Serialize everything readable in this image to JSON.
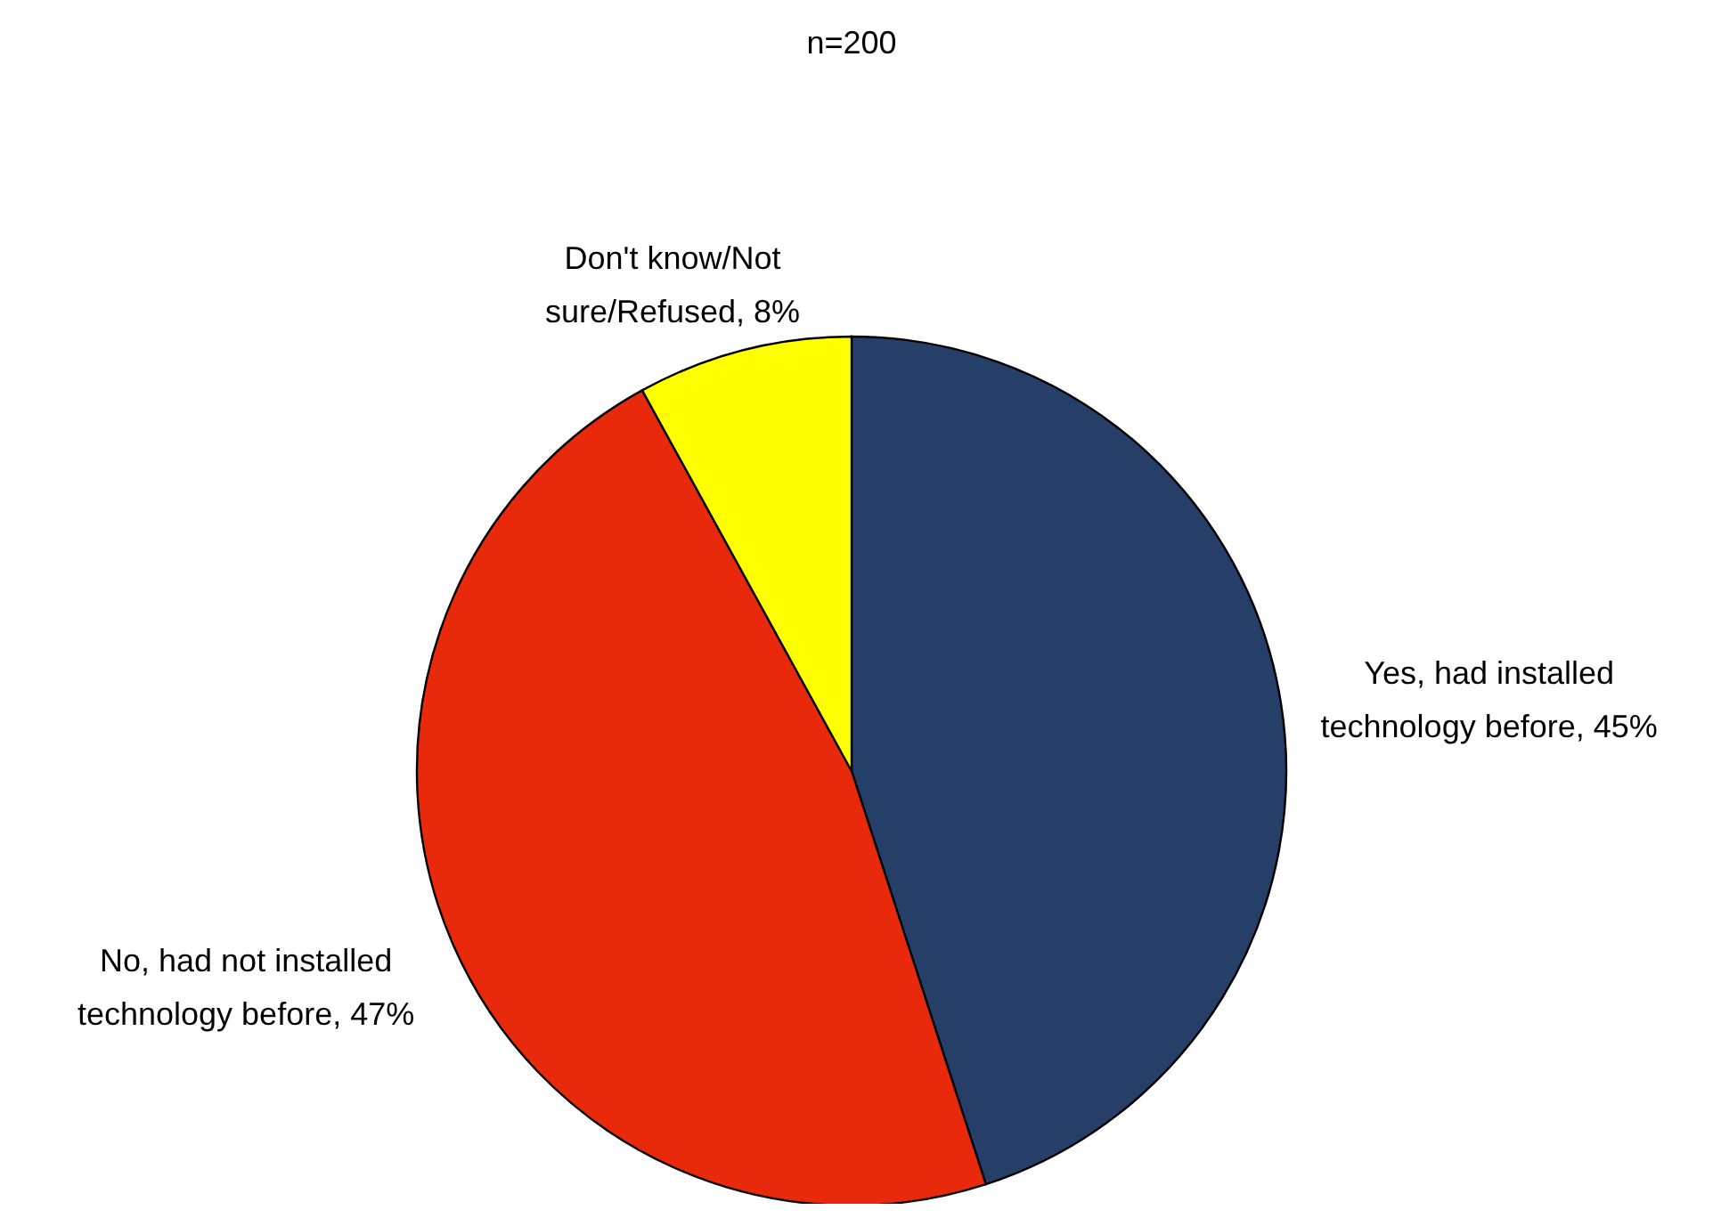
{
  "chart_data": {
    "type": "pie",
    "title": "n=200",
    "categories": [
      "Yes, had installed technology before",
      "No, had not installed technology before",
      "Don't know/Not sure/Refused"
    ],
    "values": [
      45,
      47,
      8
    ],
    "value_labels": [
      "45%",
      "47%",
      "8%"
    ],
    "colors": [
      "#253f68",
      "#e8290b",
      "#ffff00"
    ]
  }
}
